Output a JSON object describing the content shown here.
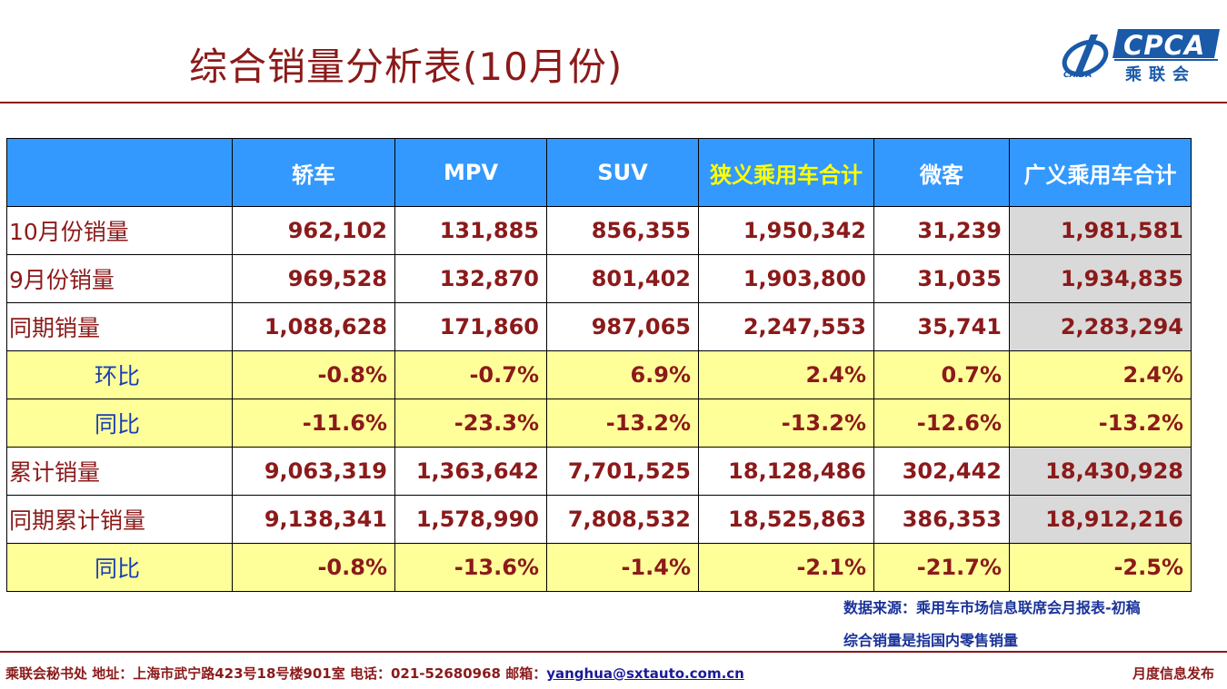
{
  "title": "综合销量分析表(10月份)",
  "logo": {
    "text": "CPCA",
    "cn": "乘联会",
    "sub": "CAIDA"
  },
  "table": {
    "headers": [
      "",
      "轿车",
      "MPV",
      "SUV",
      "狭义乘用车合计",
      "微客",
      "广义乘用车合计"
    ],
    "rows": [
      {
        "label": "10月份销量",
        "values": [
          "962,102",
          "131,885",
          "856,355",
          "1,950,342",
          "31,239",
          "1,981,581"
        ]
      },
      {
        "label": "9月份销量",
        "values": [
          "969,528",
          "132,870",
          "801,402",
          "1,903,800",
          "31,035",
          "1,934,835"
        ]
      },
      {
        "label": "同期销量",
        "values": [
          "1,088,628",
          "171,860",
          "987,065",
          "2,247,553",
          "35,741",
          "2,283,294"
        ]
      },
      {
        "label": "环比",
        "values": [
          "-0.8%",
          "-0.7%",
          "6.9%",
          "2.4%",
          "0.7%",
          "2.4%"
        ]
      },
      {
        "label": "同比",
        "values": [
          "-11.6%",
          "-23.3%",
          "-13.2%",
          "-13.2%",
          "-12.6%",
          "-13.2%"
        ]
      },
      {
        "label": "累计销量",
        "values": [
          "9,063,319",
          "1,363,642",
          "7,701,525",
          "18,128,486",
          "302,442",
          "18,430,928"
        ]
      },
      {
        "label": "同期累计销量",
        "values": [
          "9,138,341",
          "1,578,990",
          "7,808,532",
          "18,525,863",
          "386,353",
          "18,912,216"
        ]
      },
      {
        "label": "同比",
        "values": [
          "-0.8%",
          "-13.6%",
          "-1.4%",
          "-2.1%",
          "-21.7%",
          "-2.5%"
        ]
      }
    ]
  },
  "notes": {
    "source": "数据来源：乘用车市场信息联席会月报表-初稿",
    "definition": "综合销量是指国内零售销量"
  },
  "footer": {
    "left": "乘联会秘书处  地址：上海市武宁路423号18号楼901室  电话：021-52680968  邮箱：",
    "email": "yanghua@sxtauto.com.cn",
    "right": "月度信息发布"
  },
  "colors": {
    "header_bg": "#3399FF",
    "ratio_row_bg": "#FFFF99",
    "total_col_bg": "#D9D9D9",
    "title_color": "#8B1A1A",
    "highlight_header": "#FFFF00"
  }
}
